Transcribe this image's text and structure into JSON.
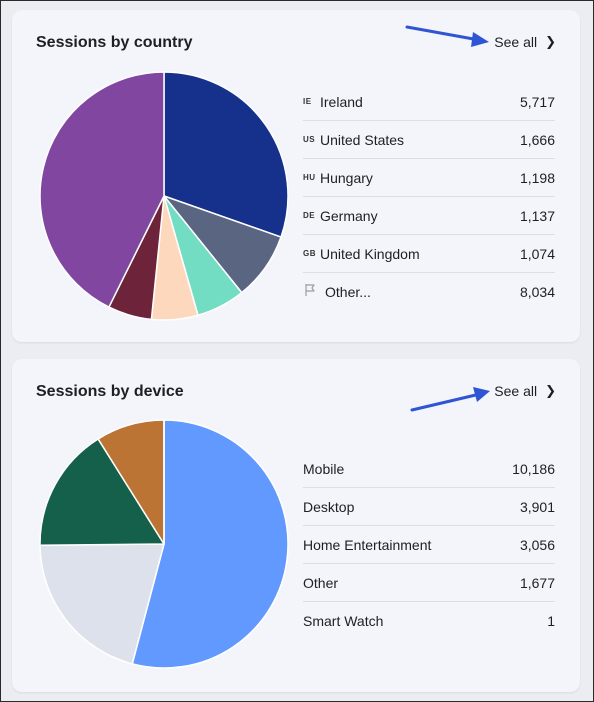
{
  "country": {
    "title": "Sessions by country",
    "see_all": "See all",
    "rows": [
      {
        "code": "IE",
        "name": "Ireland",
        "value": "5,717"
      },
      {
        "code": "US",
        "name": "United States",
        "value": "1,666"
      },
      {
        "code": "HU",
        "name": "Hungary",
        "value": "1,198"
      },
      {
        "code": "DE",
        "name": "Germany",
        "value": "1,137"
      },
      {
        "code": "GB",
        "name": "United Kingdom",
        "value": "1,074"
      },
      {
        "code": "",
        "name": "Other...",
        "value": "8,034",
        "icon": "flag-icon"
      }
    ],
    "chart_data": {
      "type": "pie",
      "slices": [
        {
          "label": "Ireland",
          "value": 5717,
          "color": "#15318c"
        },
        {
          "label": "United States",
          "value": 1666,
          "color": "#5a6581"
        },
        {
          "label": "Hungary",
          "value": 1198,
          "color": "#73ddc3"
        },
        {
          "label": "Germany",
          "value": 1137,
          "color": "#fdd8bd"
        },
        {
          "label": "United Kingdom",
          "value": 1074,
          "color": "#6d233a"
        },
        {
          "label": "Other...",
          "value": 8034,
          "color": "#8147a0"
        }
      ]
    }
  },
  "device": {
    "title": "Sessions by device",
    "see_all": "See all",
    "rows": [
      {
        "name": "Mobile",
        "value": "10,186"
      },
      {
        "name": "Desktop",
        "value": "3,901"
      },
      {
        "name": "Home Entertainment",
        "value": "3,056"
      },
      {
        "name": "Other",
        "value": "1,677"
      },
      {
        "name": "Smart Watch",
        "value": "1"
      }
    ],
    "chart_data": {
      "type": "pie",
      "slices": [
        {
          "label": "Mobile",
          "value": 10186,
          "color": "#6299ff"
        },
        {
          "label": "Desktop",
          "value": 3901,
          "color": "#dde1eb"
        },
        {
          "label": "Home Entertainment",
          "value": 3056,
          "color": "#14604a"
        },
        {
          "label": "Other",
          "value": 1677,
          "color": "#bb7434"
        },
        {
          "label": "Smart Watch",
          "value": 1,
          "color": "#c9a14a"
        }
      ]
    }
  },
  "colors": {
    "arrow": "#2f55d4"
  }
}
